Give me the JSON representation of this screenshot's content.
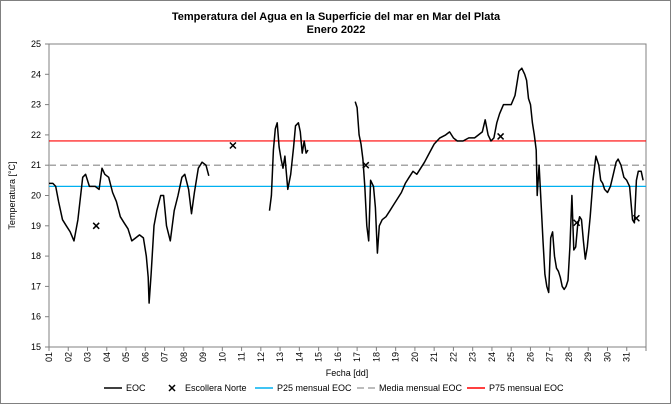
{
  "chart_data": {
    "type": "line",
    "title": "Temperatura del Agua en la Superficie del mar en Mar del Plata",
    "subtitle": "Enero 2022",
    "xlabel": "Fecha [dd]",
    "ylabel": "Temperatura [°C]",
    "ylim": [
      15,
      25
    ],
    "yticks": [
      "15",
      "16",
      "17",
      "18",
      "19",
      "20",
      "21",
      "22",
      "23",
      "24",
      "25"
    ],
    "xlim": [
      1,
      32
    ],
    "xticks": [
      "01",
      "02",
      "03",
      "04",
      "05",
      "06",
      "07",
      "08",
      "09",
      "10",
      "11",
      "12",
      "13",
      "14",
      "15",
      "16",
      "17",
      "18",
      "19",
      "20",
      "21",
      "22",
      "23",
      "24",
      "25",
      "26",
      "27",
      "28",
      "29",
      "30",
      "31"
    ],
    "grid": false,
    "legend_position": "bottom",
    "reference_lines": [
      {
        "name": "P25 mensual EOC",
        "value": 20.3,
        "color": "#00b0f0",
        "style": "solid"
      },
      {
        "name": "Media mensual EOC",
        "value": 21.0,
        "color": "#a6a6a6",
        "style": "dashed"
      },
      {
        "name": "P75 mensual EOC",
        "value": 21.8,
        "color": "#ff0000",
        "style": "solid"
      }
    ],
    "series": [
      {
        "name": "EOC",
        "color": "#000000",
        "segments": [
          [
            [
              1.0,
              20.4
            ],
            [
              1.2,
              20.4
            ],
            [
              1.35,
              20.3
            ],
            [
              1.5,
              19.8
            ],
            [
              1.7,
              19.2
            ],
            [
              1.9,
              19.0
            ],
            [
              2.1,
              18.8
            ],
            [
              2.3,
              18.5
            ],
            [
              2.5,
              19.2
            ],
            [
              2.75,
              20.6
            ],
            [
              2.9,
              20.7
            ],
            [
              3.1,
              20.3
            ],
            [
              3.4,
              20.3
            ],
            [
              3.6,
              20.2
            ],
            [
              3.75,
              20.9
            ],
            [
              3.9,
              20.7
            ],
            [
              4.1,
              20.6
            ],
            [
              4.3,
              20.1
            ],
            [
              4.5,
              19.8
            ],
            [
              4.7,
              19.3
            ],
            [
              4.9,
              19.1
            ],
            [
              5.1,
              18.9
            ],
            [
              5.3,
              18.5
            ],
            [
              5.5,
              18.6
            ],
            [
              5.7,
              18.7
            ],
            [
              5.9,
              18.6
            ],
            [
              6.05,
              18.0
            ],
            [
              6.15,
              17.3
            ],
            [
              6.2,
              16.45
            ],
            [
              6.3,
              17.4
            ],
            [
              6.45,
              19.0
            ],
            [
              6.6,
              19.5
            ],
            [
              6.8,
              20.0
            ],
            [
              6.95,
              20.0
            ],
            [
              7.1,
              19.0
            ],
            [
              7.3,
              18.5
            ],
            [
              7.5,
              19.5
            ],
            [
              7.7,
              20.0
            ],
            [
              7.9,
              20.6
            ],
            [
              8.05,
              20.7
            ],
            [
              8.25,
              20.2
            ],
            [
              8.4,
              19.4
            ],
            [
              8.55,
              20.1
            ],
            [
              8.75,
              20.9
            ],
            [
              8.95,
              21.1
            ],
            [
              9.15,
              21.0
            ],
            [
              9.3,
              20.65
            ]
          ],
          [
            [
              12.45,
              19.5
            ],
            [
              12.55,
              20.0
            ],
            [
              12.65,
              21.5
            ],
            [
              12.75,
              22.2
            ],
            [
              12.85,
              22.4
            ],
            [
              12.95,
              21.6
            ],
            [
              13.05,
              21.2
            ],
            [
              13.15,
              20.9
            ],
            [
              13.25,
              21.3
            ],
            [
              13.4,
              20.2
            ],
            [
              13.55,
              20.7
            ],
            [
              13.7,
              21.6
            ],
            [
              13.8,
              22.3
            ],
            [
              13.95,
              22.4
            ],
            [
              14.05,
              22.1
            ],
            [
              14.15,
              21.4
            ],
            [
              14.25,
              21.8
            ],
            [
              14.35,
              21.4
            ],
            [
              14.45,
              21.5
            ]
          ],
          [
            [
              16.9,
              23.1
            ],
            [
              17.0,
              22.9
            ],
            [
              17.1,
              22.0
            ],
            [
              17.2,
              21.7
            ],
            [
              17.3,
              21.2
            ],
            [
              17.4,
              20.3
            ],
            [
              17.5,
              19.0
            ],
            [
              17.6,
              18.5
            ],
            [
              17.7,
              20.5
            ],
            [
              17.85,
              20.3
            ],
            [
              17.95,
              19.6
            ],
            [
              18.05,
              18.1
            ],
            [
              18.15,
              19.0
            ],
            [
              18.3,
              19.2
            ],
            [
              18.5,
              19.3
            ],
            [
              18.7,
              19.5
            ],
            [
              18.9,
              19.7
            ],
            [
              19.1,
              19.9
            ],
            [
              19.3,
              20.1
            ],
            [
              19.5,
              20.4
            ],
            [
              19.7,
              20.6
            ],
            [
              19.9,
              20.8
            ],
            [
              20.1,
              20.7
            ],
            [
              20.3,
              20.9
            ],
            [
              20.5,
              21.1
            ],
            [
              20.75,
              21.4
            ],
            [
              21.0,
              21.7
            ],
            [
              21.3,
              21.9
            ],
            [
              21.6,
              22.0
            ],
            [
              21.8,
              22.1
            ],
            [
              22.0,
              21.9
            ],
            [
              22.2,
              21.8
            ],
            [
              22.5,
              21.8
            ],
            [
              22.8,
              21.9
            ],
            [
              23.1,
              21.9
            ],
            [
              23.3,
              22.0
            ],
            [
              23.5,
              22.1
            ],
            [
              23.65,
              22.5
            ],
            [
              23.8,
              22.0
            ],
            [
              23.95,
              21.8
            ],
            [
              24.1,
              21.9
            ],
            [
              24.25,
              22.4
            ],
            [
              24.4,
              22.7
            ],
            [
              24.6,
              23.0
            ],
            [
              24.8,
              23.0
            ],
            [
              25.0,
              23.0
            ],
            [
              25.2,
              23.3
            ],
            [
              25.4,
              24.1
            ],
            [
              25.55,
              24.2
            ],
            [
              25.7,
              24.0
            ],
            [
              25.8,
              23.8
            ],
            [
              25.9,
              23.2
            ],
            [
              26.0,
              23.0
            ],
            [
              26.1,
              22.4
            ],
            [
              26.2,
              22.0
            ],
            [
              26.3,
              21.5
            ],
            [
              26.35,
              20.0
            ],
            [
              26.45,
              21.0
            ],
            [
              26.55,
              19.8
            ],
            [
              26.65,
              18.5
            ],
            [
              26.75,
              17.4
            ],
            [
              26.85,
              17.0
            ],
            [
              26.95,
              16.8
            ],
            [
              27.05,
              18.6
            ],
            [
              27.15,
              18.8
            ],
            [
              27.25,
              18.0
            ],
            [
              27.35,
              17.6
            ],
            [
              27.45,
              17.5
            ],
            [
              27.55,
              17.3
            ],
            [
              27.65,
              17.0
            ],
            [
              27.75,
              16.9
            ],
            [
              27.85,
              17.0
            ],
            [
              27.95,
              17.2
            ],
            [
              28.05,
              18.3
            ],
            [
              28.15,
              20.0
            ],
            [
              28.25,
              18.2
            ],
            [
              28.35,
              18.3
            ],
            [
              28.45,
              19.0
            ],
            [
              28.55,
              19.3
            ],
            [
              28.65,
              19.2
            ],
            [
              28.75,
              18.5
            ],
            [
              28.85,
              17.9
            ],
            [
              28.95,
              18.3
            ],
            [
              29.1,
              19.3
            ],
            [
              29.25,
              20.5
            ],
            [
              29.4,
              21.3
            ],
            [
              29.55,
              21.0
            ],
            [
              29.65,
              20.5
            ],
            [
              29.75,
              20.4
            ],
            [
              29.85,
              20.2
            ],
            [
              30.0,
              20.1
            ],
            [
              30.15,
              20.3
            ],
            [
              30.3,
              20.7
            ],
            [
              30.45,
              21.1
            ],
            [
              30.55,
              21.2
            ],
            [
              30.7,
              21.0
            ],
            [
              30.85,
              20.6
            ],
            [
              31.0,
              20.5
            ],
            [
              31.15,
              20.3
            ],
            [
              31.3,
              19.2
            ],
            [
              31.4,
              19.1
            ],
            [
              31.5,
              20.5
            ],
            [
              31.6,
              20.8
            ],
            [
              31.75,
              20.8
            ],
            [
              31.85,
              20.5
            ]
          ]
        ]
      },
      {
        "name": "Escollera Norte",
        "marker": "x",
        "color": "#000000",
        "points": [
          [
            3.45,
            19.0
          ],
          [
            10.55,
            21.65
          ],
          [
            17.45,
            21.0
          ],
          [
            24.45,
            21.95
          ],
          [
            28.4,
            19.1
          ],
          [
            31.5,
            19.25
          ]
        ]
      }
    ]
  }
}
